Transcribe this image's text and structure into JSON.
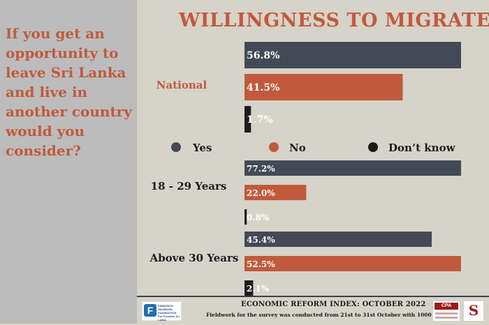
{
  "question": "If you get an\nopportunity to\nleave Sri Lanka\nand live in\nanother country\nwould you\nconsider?",
  "colors": {
    "yes": "#434a56",
    "no": "#c15a3c",
    "dont_know": "#1c1c1c",
    "accent": "#c15a3c",
    "left_panel": "#bcbcbc",
    "background": "#d6d3c9"
  },
  "footer": {
    "title": "ECONOMIC REFORM INDEX: OCTOBER 2022",
    "note": "Fieldwork for the survey was conducted from 21st to 31st October with 1000 sample"
  },
  "logos": [
    {
      "name": "FRIEDRICH NAUMANN FOUNDATION For Freedom Sri Lanka",
      "mark": "F"
    },
    {
      "name": "CPA",
      "mark": "CPA"
    },
    {
      "name": "Social Indicator",
      "mark": "S"
    }
  ],
  "chart_data": {
    "type": "bar",
    "orientation": "horizontal",
    "title": "WILLINGNESS TO MIGRATE",
    "legend": {
      "placement": "middle",
      "items": [
        "Yes",
        "No",
        "Don’t know"
      ]
    },
    "groups": [
      {
        "label": "National",
        "values": [
          56.8,
          41.5,
          1.7
        ],
        "labels": [
          "56.8%",
          "41.5%",
          "1.7%"
        ]
      },
      {
        "label": "18 - 29 Years",
        "values": [
          77.2,
          22.0,
          0.8
        ],
        "labels": [
          "77.2%",
          "22.0%",
          "0.8%"
        ]
      },
      {
        "label": "Above 30 Years",
        "values": [
          45.4,
          52.5,
          2.1
        ],
        "labels": [
          "45.4%",
          "52.5%",
          "2.1%"
        ]
      }
    ],
    "series": [
      {
        "name": "Yes",
        "color": "#434a56"
      },
      {
        "name": "No",
        "color": "#c15a3c"
      },
      {
        "name": "Don’t know",
        "color": "#1c1c1c"
      }
    ],
    "group_max": [
      56.8,
      77.2,
      52.5
    ],
    "grid": false
  }
}
